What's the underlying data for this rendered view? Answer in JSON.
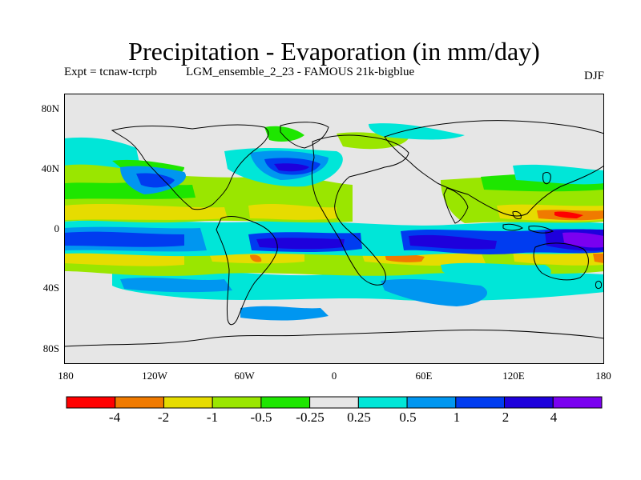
{
  "title": "Precipitation - Evaporation (in mm/day)",
  "experiment": "Expt = tcnaw-tcrpb",
  "run": "LGM_ensemble_2_23 - FAMOUS 21k-bigblue",
  "season": "DJF",
  "lat_ticks": [
    "80N",
    "40N",
    "0",
    "40S",
    "80S"
  ],
  "lon_ticks": [
    "180",
    "120W",
    "60W",
    "0",
    "60E",
    "120E",
    "180"
  ],
  "colorbar": {
    "colors": [
      "#ff0000",
      "#f07a00",
      "#e6dc00",
      "#9ae600",
      "#1ee600",
      "#e6e6e6",
      "#00e6d8",
      "#0096f0",
      "#003cf0",
      "#1e00dc",
      "#7a00f0"
    ],
    "labels": [
      "-4",
      "-2",
      "-1",
      "-0.5",
      "-0.25",
      "0.25",
      "0.5",
      "1",
      "2",
      "4"
    ]
  },
  "map": {
    "background": "#e6e6e6",
    "bands": [
      {
        "name": "tropical-pacific-wet-core",
        "color": "#003cf0"
      },
      {
        "name": "indo-pacific-wet-core",
        "color": "#7a00f0"
      },
      {
        "name": "atlantic-itcz",
        "color": "#1e00dc"
      },
      {
        "name": "north-pacific-storm-track",
        "color": "#0096f0"
      },
      {
        "name": "north-atlantic-storm-track",
        "color": "#003cf0"
      },
      {
        "name": "southern-ocean-band",
        "color": "#00e6d8"
      },
      {
        "name": "subtropical-dry-north",
        "color": "#9ae600"
      },
      {
        "name": "subtropical-dry-south",
        "color": "#1ee600"
      },
      {
        "name": "evaporation-max-south",
        "color": "#e6dc00"
      },
      {
        "name": "evaporation-max-north",
        "color": "#f07a00"
      }
    ]
  }
}
